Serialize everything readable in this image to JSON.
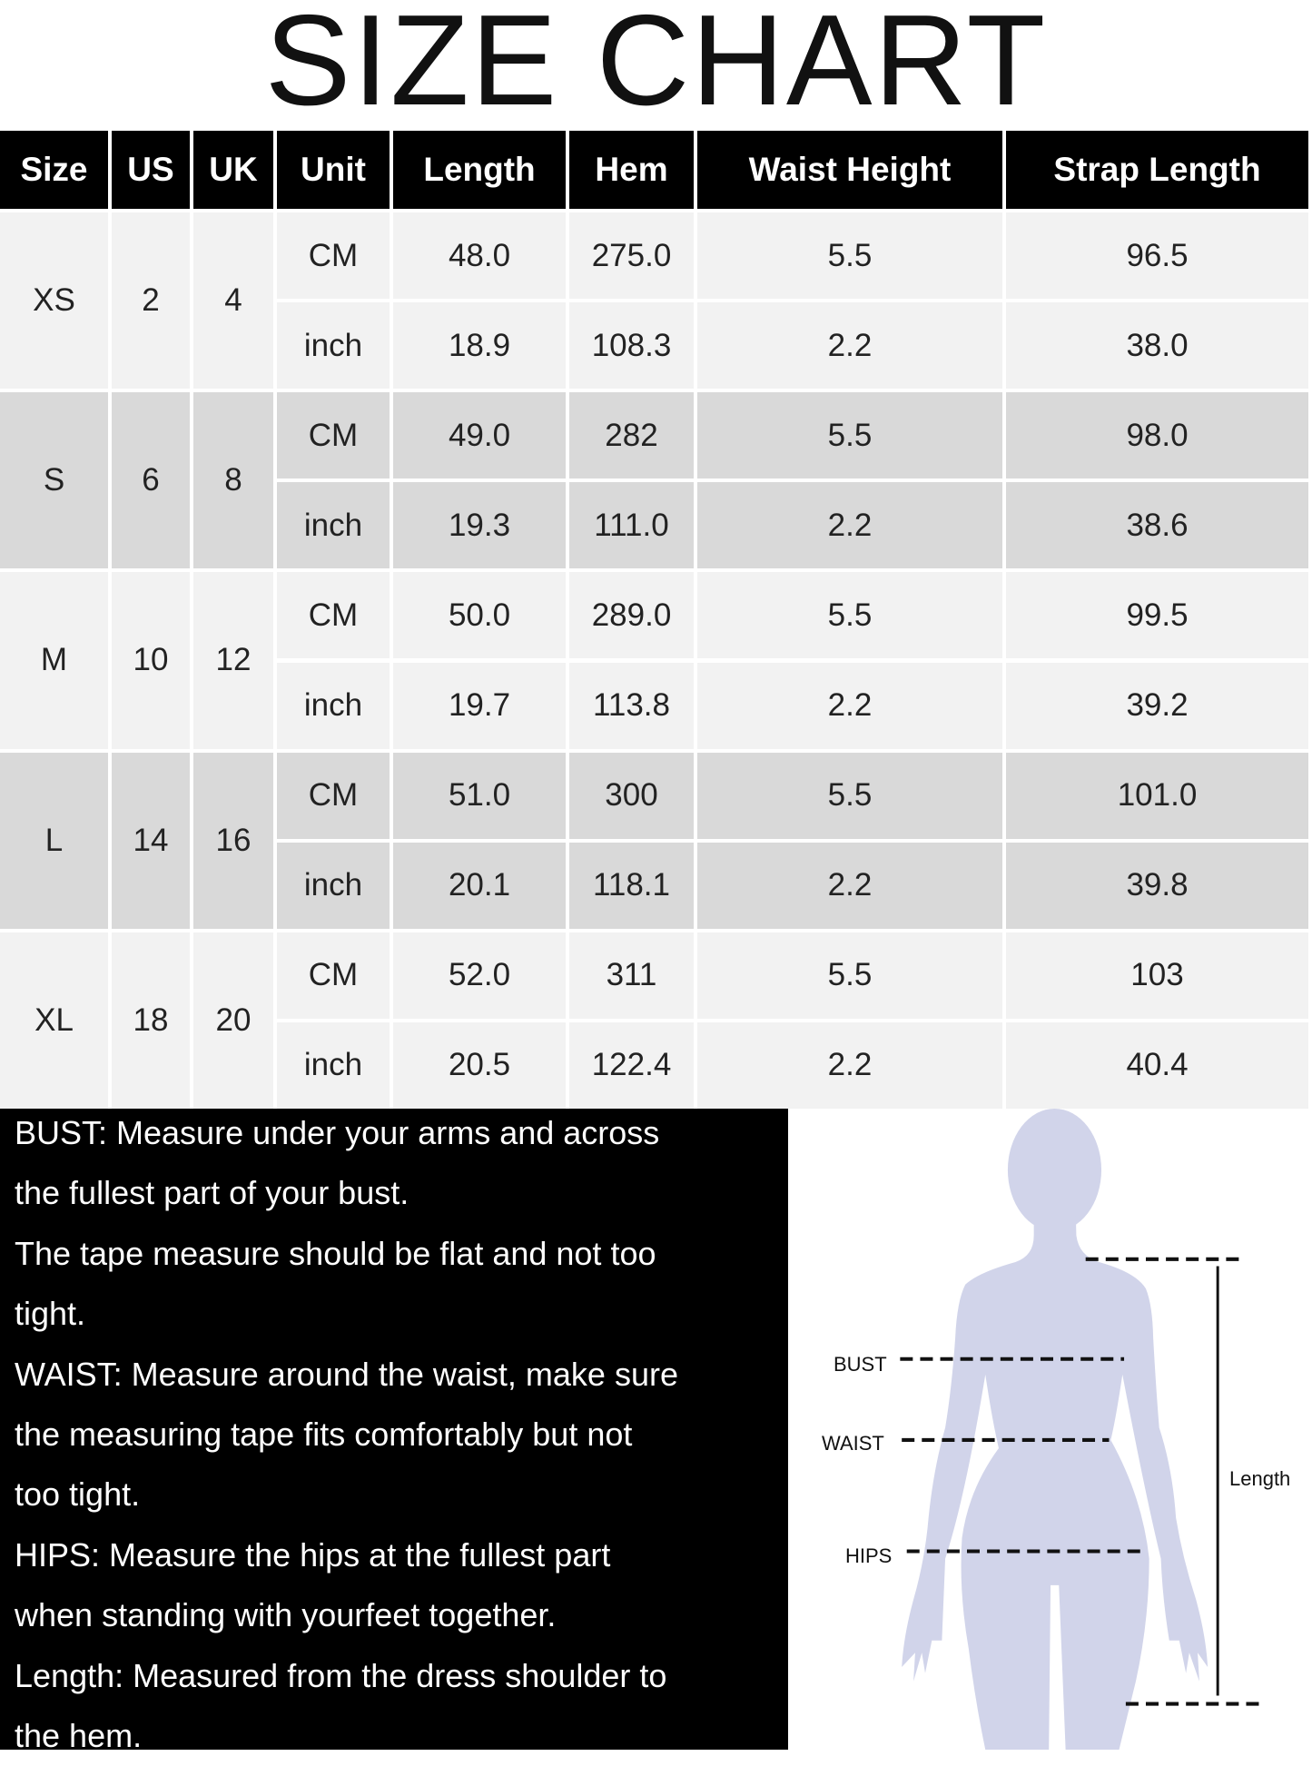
{
  "title": "SIZE CHART",
  "table": {
    "headers": [
      "Size",
      "US",
      "UK",
      "Unit",
      "Length",
      "Hem",
      "Waist Height",
      "Strap Length"
    ],
    "rows": [
      {
        "size": "XS",
        "us": "2",
        "uk": "4",
        "cm": [
          "CM",
          "48.0",
          "275.0",
          "5.5",
          "96.5"
        ],
        "inch": [
          "inch",
          "18.9",
          "108.3",
          "2.2",
          "38.0"
        ]
      },
      {
        "size": "S",
        "us": "6",
        "uk": "8",
        "cm": [
          "CM",
          "49.0",
          "282",
          "5.5",
          "98.0"
        ],
        "inch": [
          "inch",
          "19.3",
          "111.0",
          "2.2",
          "38.6"
        ]
      },
      {
        "size": "M",
        "us": "10",
        "uk": "12",
        "cm": [
          "CM",
          "50.0",
          "289.0",
          "5.5",
          "99.5"
        ],
        "inch": [
          "inch",
          "19.7",
          "113.8",
          "2.2",
          "39.2"
        ]
      },
      {
        "size": "L",
        "us": "14",
        "uk": "16",
        "cm": [
          "CM",
          "51.0",
          "300",
          "5.5",
          "101.0"
        ],
        "inch": [
          "inch",
          "20.1",
          "118.1",
          "2.2",
          "39.8"
        ]
      },
      {
        "size": "XL",
        "us": "18",
        "uk": "20",
        "cm": [
          "CM",
          "52.0",
          "311",
          "5.5",
          "103"
        ],
        "inch": [
          "inch",
          "20.5",
          "122.4",
          "2.2",
          "40.4"
        ]
      }
    ],
    "colors": {
      "header_bg": "#000000",
      "row_light": "#f2f2f2",
      "row_dark": "#d9d9d9"
    }
  },
  "instructions": {
    "lines": [
      "BUST: Measure under your arms and across",
      "the fullest part of your bust.",
      "The tape measure should be flat and not too",
      "tight.",
      "WAIST: Measure around the waist, make sure",
      "the measuring tape fits comfortably but not",
      "too tight.",
      "HIPS: Measure the hips at the fullest part",
      "when standing with yourfeet together.",
      "Length: Measured from the dress shoulder to",
      "the hem."
    ]
  },
  "figure": {
    "labels": {
      "bust": "BUST",
      "waist": "WAIST",
      "hips": "HIPS",
      "length": "Length"
    },
    "silhouette_color": "#d1d4ea"
  }
}
